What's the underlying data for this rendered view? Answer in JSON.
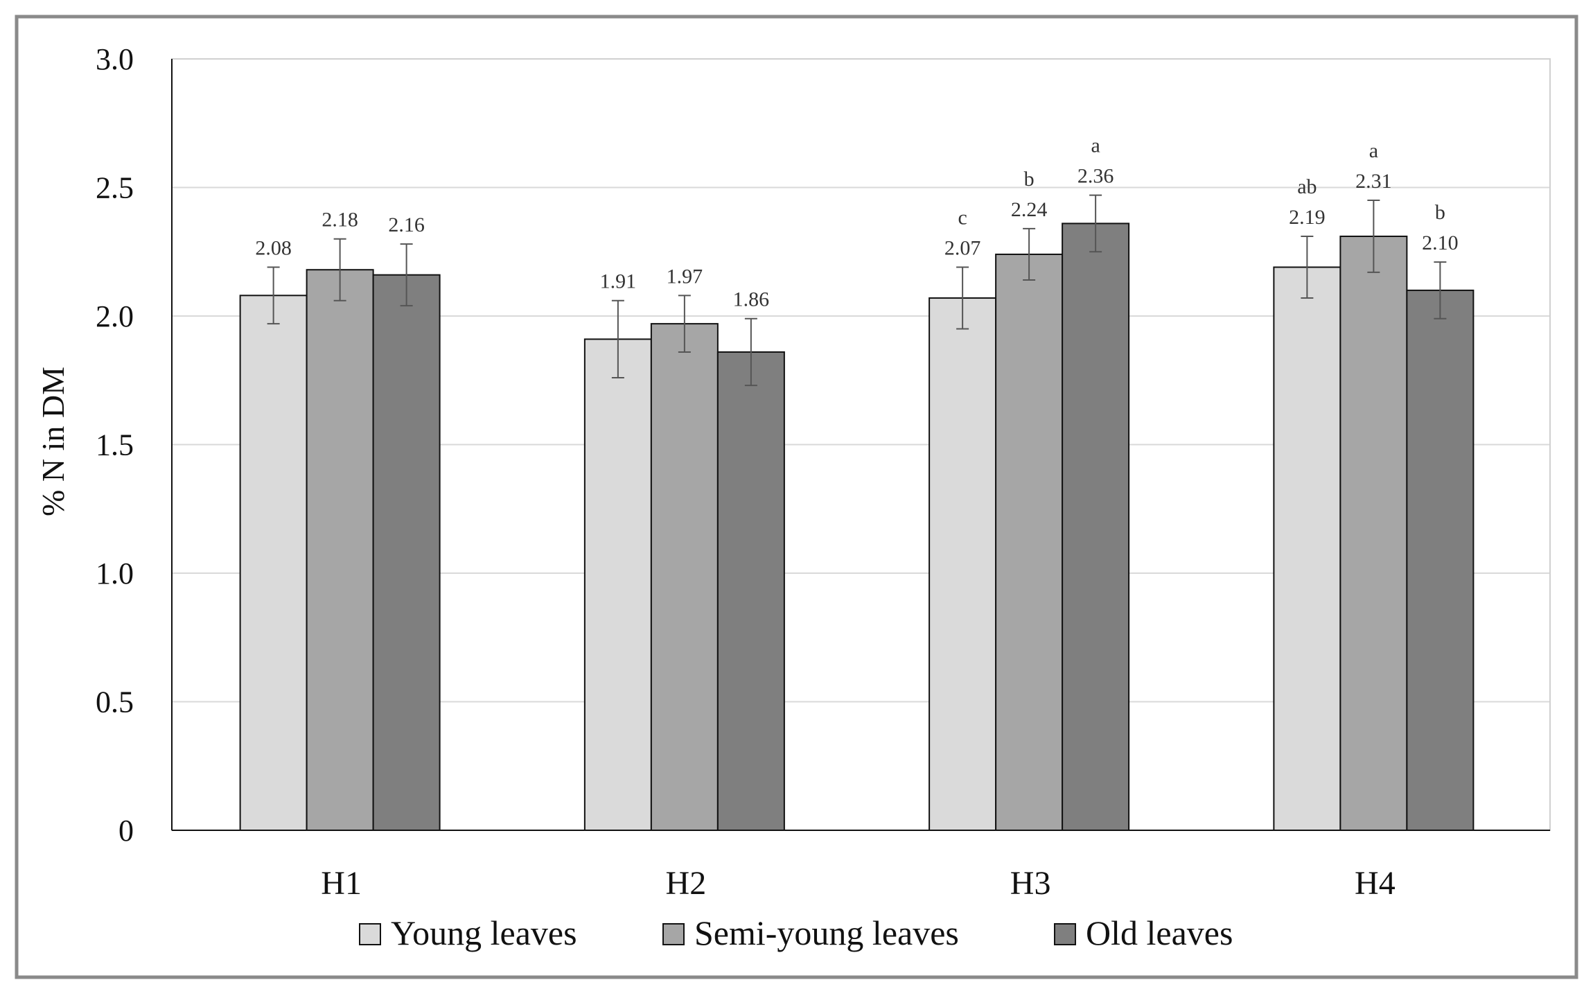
{
  "chart_data": {
    "type": "bar",
    "title": "",
    "xlabel": "",
    "ylabel": "% N in DM",
    "ylim": [
      0,
      3.0
    ],
    "yticks": [
      "0",
      "0.5",
      "1.0",
      "1.5",
      "2.0",
      "2.5",
      "3.0"
    ],
    "ytick_values": [
      0,
      0.5,
      1.0,
      1.5,
      2.0,
      2.5,
      3.0
    ],
    "grid": true,
    "legend_position": "bottom",
    "categories": [
      "H1",
      "H2",
      "H3",
      "H4"
    ],
    "series": [
      {
        "name": "Young leaves",
        "color": "#dadada",
        "values": [
          2.08,
          1.91,
          2.07,
          2.19
        ],
        "labels": [
          "2.08",
          "1.91",
          "2.07",
          "2.19"
        ],
        "errors": [
          0.11,
          0.15,
          0.12,
          0.12
        ],
        "letters": [
          "",
          "",
          "c",
          "ab"
        ]
      },
      {
        "name": "Semi-young leaves",
        "color": "#a6a6a6",
        "values": [
          2.18,
          1.97,
          2.24,
          2.31
        ],
        "labels": [
          "2.18",
          "1.97",
          "2.24",
          "2.31"
        ],
        "errors": [
          0.12,
          0.11,
          0.1,
          0.14
        ],
        "letters": [
          "",
          "",
          "b",
          "a"
        ]
      },
      {
        "name": "Old leaves",
        "color": "#7f7f7f",
        "values": [
          2.16,
          1.86,
          2.36,
          2.1
        ],
        "labels": [
          "2.16",
          "1.86",
          "2.36",
          "2.10"
        ],
        "errors": [
          0.12,
          0.13,
          0.11,
          0.11
        ],
        "letters": [
          "",
          "",
          "a",
          "b"
        ]
      }
    ]
  }
}
